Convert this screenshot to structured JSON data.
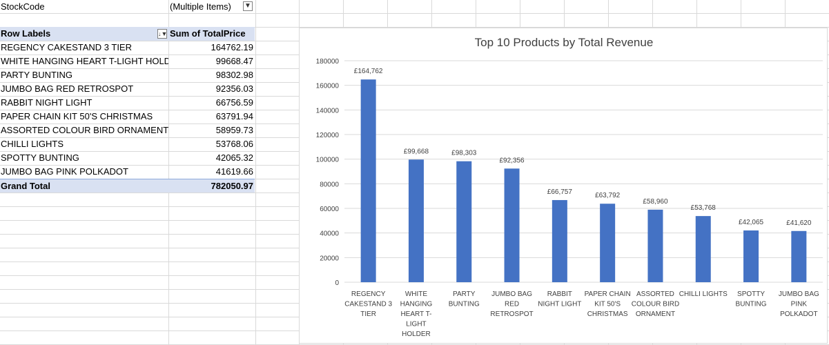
{
  "pivot": {
    "filter_label": "StockCode",
    "filter_value": "(Multiple Items)",
    "header_row_labels": "Row Labels",
    "header_sum": "Sum of TotalPrice",
    "rows": [
      {
        "label": "REGENCY CAKESTAND 3 TIER",
        "value": "164762.19"
      },
      {
        "label": "WHITE HANGING HEART T-LIGHT HOLDEF",
        "value": "99668.47"
      },
      {
        "label": "PARTY BUNTING",
        "value": "98302.98"
      },
      {
        "label": "JUMBO BAG RED RETROSPOT",
        "value": "92356.03"
      },
      {
        "label": "RABBIT NIGHT LIGHT",
        "value": "66756.59"
      },
      {
        "label": "PAPER CHAIN KIT 50'S CHRISTMAS",
        "value": "63791.94"
      },
      {
        "label": "ASSORTED COLOUR BIRD ORNAMENT",
        "value": "58959.73"
      },
      {
        "label": "CHILLI LIGHTS",
        "value": "53768.06"
      },
      {
        "label": "SPOTTY BUNTING",
        "value": "42065.32"
      },
      {
        "label": "JUMBO BAG PINK POLKADOT",
        "value": "41619.66"
      }
    ],
    "grand_total_label": "Grand Total",
    "grand_total_value": "782050.97"
  },
  "colors": {
    "bar": "#4472c4",
    "gridline": "#d9d9d9",
    "pivot_header": "#d9e1f2"
  },
  "chart_data": {
    "type": "bar",
    "title": "Top 10 Products by Total Revenue",
    "categories": [
      [
        "REGENCY",
        "CAKESTAND 3",
        "TIER"
      ],
      [
        "WHITE",
        "HANGING",
        "HEART T-",
        "LIGHT",
        "HOLDER"
      ],
      [
        "PARTY",
        "BUNTING"
      ],
      [
        "JUMBO BAG",
        "RED",
        "RETROSPOT"
      ],
      [
        "RABBIT",
        "NIGHT LIGHT"
      ],
      [
        "PAPER CHAIN",
        "KIT 50'S",
        "CHRISTMAS"
      ],
      [
        "ASSORTED",
        "COLOUR BIRD",
        "ORNAMENT"
      ],
      [
        "CHILLI LIGHTS"
      ],
      [
        "SPOTTY",
        "BUNTING"
      ],
      [
        "JUMBO BAG",
        "PINK",
        "POLKADOT"
      ]
    ],
    "values": [
      164762.19,
      99668.47,
      98302.98,
      92356.03,
      66756.59,
      63791.94,
      58959.73,
      53768.06,
      42065.32,
      41619.66
    ],
    "data_labels": [
      "£164,762",
      "£99,668",
      "£98,303",
      "£92,356",
      "£66,757",
      "£63,792",
      "£58,960",
      "£53,768",
      "£42,065",
      "£41,620"
    ],
    "y_ticks": [
      "0",
      "20000",
      "40000",
      "60000",
      "80000",
      "100000",
      "120000",
      "140000",
      "160000",
      "180000"
    ],
    "ylim": [
      0,
      180000
    ],
    "grid": true,
    "legend": "none"
  }
}
